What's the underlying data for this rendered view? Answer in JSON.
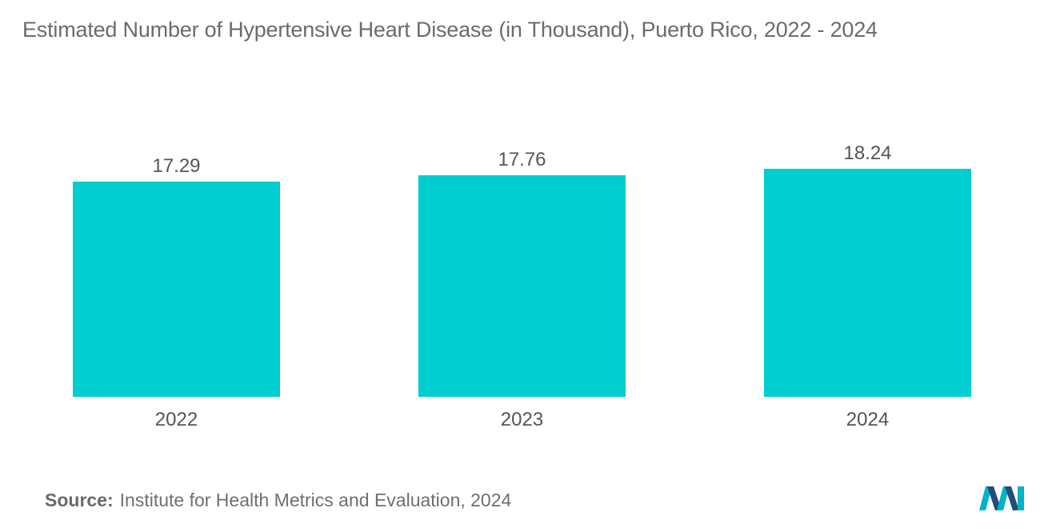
{
  "title": "Estimated Number of Hypertensive Heart Disease (in Thousand), Puerto Rico, 2022 - 2024",
  "source": {
    "label": "Source:",
    "text": "Institute for Health Metrics and Evaluation, 2024"
  },
  "colors": {
    "bar": "#00cdd0",
    "title": "#6b6b6b",
    "text": "#555555",
    "logo_dark": "#1f4e79",
    "logo_light": "#00b3c6"
  },
  "logo": {
    "icon": "mordor-intelligence-logo-icon"
  },
  "chart_data": {
    "type": "bar",
    "title": "Estimated Number of Hypertensive Heart Disease (in Thousand), Puerto Rico, 2022 - 2024",
    "categories": [
      "2022",
      "2023",
      "2024"
    ],
    "values": [
      17.29,
      17.76,
      18.24
    ],
    "data_labels": [
      "17.29",
      "17.76",
      "18.24"
    ],
    "xlabel": "",
    "ylabel": "",
    "grid": false,
    "legend": "none"
  }
}
